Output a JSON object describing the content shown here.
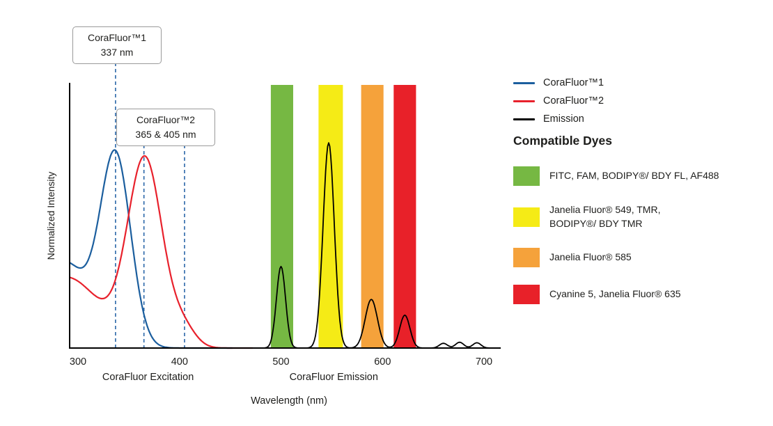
{
  "chart_data": {
    "type": "line",
    "xlabel": "Wavelength (nm)",
    "ylabel": "Normalized Intensity",
    "x_ticks": [
      300,
      400,
      500,
      600,
      700
    ],
    "xlim": [
      292,
      716
    ],
    "ylim": [
      0,
      1
    ],
    "grid": false,
    "legend_position": "top-right",
    "axis_section_labels": [
      {
        "label": "CoraFluor Excitation",
        "center_nm": 369
      },
      {
        "label": "CoraFluor Emission",
        "center_nm": 552
      }
    ],
    "guide_color": "#2A66A8",
    "guide_lines": [
      {
        "nm": 337,
        "series": "CoraFluor™1"
      },
      {
        "nm": 365,
        "series": "CoraFluor™2"
      },
      {
        "nm": 405,
        "series": "CoraFluor™2"
      }
    ],
    "filter_bands": [
      {
        "id": "green",
        "range_nm": [
          490,
          512
        ],
        "color": "#76B843",
        "dyes": "FITC, FAM, BODIPY®/ BDY FL, AF488"
      },
      {
        "id": "yellow",
        "range_nm": [
          537,
          561
        ],
        "color": "#F5EB16",
        "dyes": "Janelia Fluor® 549, TMR, BODIPY®/ BDY TMR"
      },
      {
        "id": "orange",
        "range_nm": [
          579,
          601
        ],
        "color": "#F5A23B",
        "dyes": "Janelia Fluor® 585"
      },
      {
        "id": "red",
        "range_nm": [
          611,
          633
        ],
        "color": "#E82129",
        "dyes": "Cyanine 5, Janelia Fluor® 635"
      }
    ],
    "series": [
      {
        "name": "CoraFluor™1",
        "color": "#1B5E9E",
        "range_nm": [
          292,
          452
        ],
        "gaussians": [
          {
            "center": 285,
            "sigma": 24,
            "amp": 0.33
          },
          {
            "center": 337,
            "sigma": 15,
            "amp": 0.72
          }
        ]
      },
      {
        "name": "CoraFluor™2",
        "color": "#E8212C",
        "range_nm": [
          292,
          472
        ],
        "gaussians": [
          {
            "center": 288,
            "sigma": 34,
            "amp": 0.27
          },
          {
            "center": 366,
            "sigma": 17,
            "amp": 0.71
          },
          {
            "center": 404,
            "sigma": 12,
            "amp": 0.07
          }
        ]
      },
      {
        "name": "Emission",
        "color": "#000000",
        "range_nm": [
          465,
          716
        ],
        "gaussians": [
          {
            "center": 500,
            "sigma": 4.5,
            "amp": 0.31
          },
          {
            "center": 547,
            "sigma": 5.5,
            "amp": 0.78
          },
          {
            "center": 589,
            "sigma": 6.0,
            "amp": 0.185
          },
          {
            "center": 622,
            "sigma": 5.0,
            "amp": 0.125
          },
          {
            "center": 660,
            "sigma": 4.0,
            "amp": 0.018
          },
          {
            "center": 676,
            "sigma": 4.0,
            "amp": 0.022
          },
          {
            "center": 693,
            "sigma": 4.0,
            "amp": 0.02
          }
        ]
      }
    ]
  },
  "callouts": [
    {
      "text": "CoraFluor™1\n337 nm"
    },
    {
      "text": "CoraFluor™2\n365 & 405 nm"
    }
  ],
  "dyes": {
    "title": "Compatible Dyes",
    "items": [
      {
        "color": "#76B843",
        "label": "FITC, FAM, BODIPY®/ BDY FL, AF488"
      },
      {
        "color": "#F5EB16",
        "label": "Janelia Fluor® 549, TMR,\nBODIPY®/ BDY TMR"
      },
      {
        "color": "#F5A23B",
        "label": "Janelia Fluor® 585"
      },
      {
        "color": "#E82129",
        "label": "Cyanine 5, Janelia Fluor® 635"
      }
    ]
  }
}
